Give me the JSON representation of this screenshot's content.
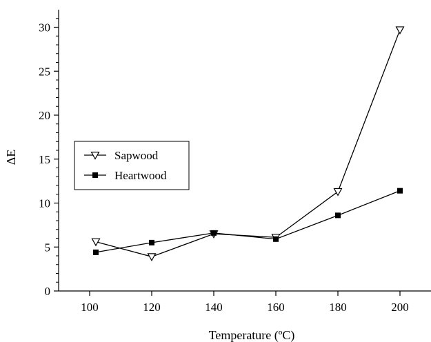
{
  "chart_data": {
    "type": "line",
    "xlabel": "Temperature (ºC)",
    "ylabel": "ΔE",
    "xlim": [
      90,
      210
    ],
    "ylim": [
      0,
      32
    ],
    "x_ticks": [
      100,
      120,
      140,
      160,
      180,
      200
    ],
    "x_tick_labels": [
      "100",
      "120",
      "140",
      "160",
      "180",
      "200"
    ],
    "y_ticks": [
      0,
      5,
      10,
      15,
      20,
      25,
      30
    ],
    "y_tick_labels": [
      "0",
      "5",
      "10",
      "15",
      "20",
      "25",
      "30"
    ],
    "grid": false,
    "legend_position": "left-middle",
    "series": [
      {
        "name": "Sapwood",
        "marker": "open-down-triangle",
        "color": "#000000",
        "x": [
          102,
          120,
          140,
          160,
          180,
          200
        ],
        "y": [
          5.6,
          3.9,
          6.5,
          6.1,
          11.3,
          29.7
        ]
      },
      {
        "name": "Heartwood",
        "marker": "filled-square",
        "color": "#000000",
        "x": [
          102,
          120,
          140,
          160,
          180,
          200
        ],
        "y": [
          4.4,
          5.5,
          6.6,
          5.9,
          8.6,
          11.4
        ]
      }
    ]
  }
}
